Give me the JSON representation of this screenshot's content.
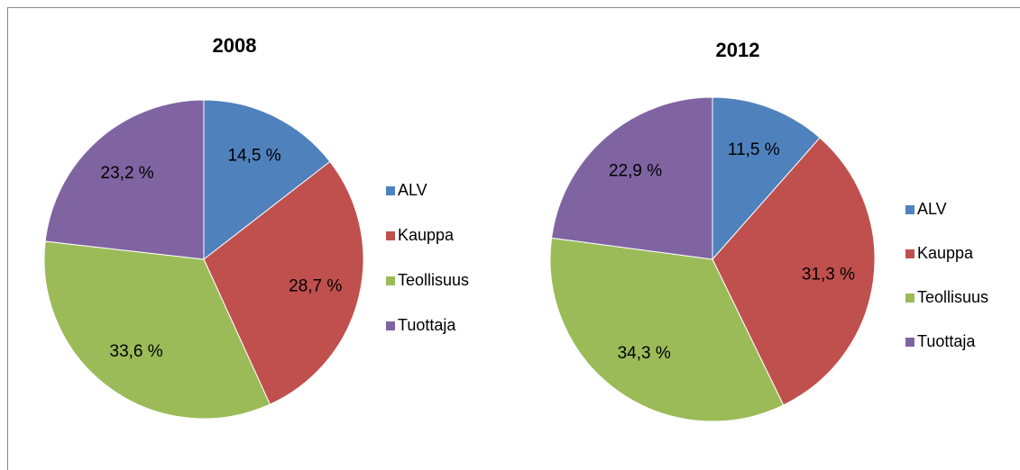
{
  "chart_data": [
    {
      "type": "pie",
      "title": "2008",
      "categories": [
        "ALV",
        "Kauppa",
        "Teollisuus",
        "Tuottaja"
      ],
      "values": [
        14.5,
        28.7,
        33.6,
        23.2
      ],
      "value_labels": [
        "14,5 %",
        "28,7 %",
        "33,6 %",
        "23,2 %"
      ],
      "colors": [
        "#4f81bd",
        "#c0504d",
        "#9bbb59",
        "#8064a2"
      ],
      "legend": "right"
    },
    {
      "type": "pie",
      "title": "2012",
      "categories": [
        "ALV",
        "Kauppa",
        "Teollisuus",
        "Tuottaja"
      ],
      "values": [
        11.5,
        31.3,
        34.3,
        22.9
      ],
      "value_labels": [
        "11,5 %",
        "31,3 %",
        "34,3 %",
        "22,9 %"
      ],
      "colors": [
        "#4f81bd",
        "#c0504d",
        "#9bbb59",
        "#8064a2"
      ],
      "legend": "right"
    }
  ]
}
